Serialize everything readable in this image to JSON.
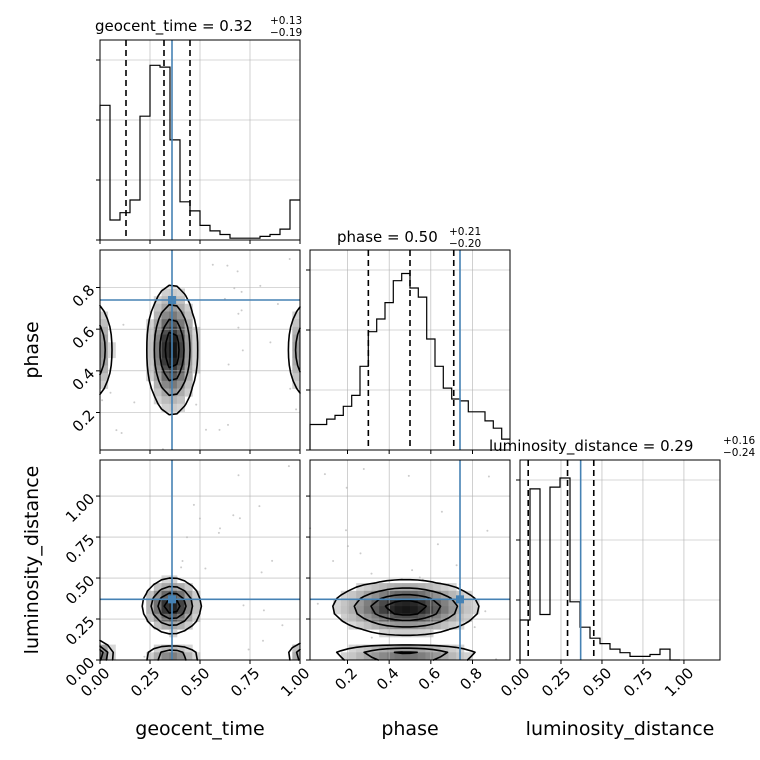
{
  "chart_data": {
    "type": "corner",
    "parameters": [
      "geocent_time",
      "phase",
      "luminosity_distance"
    ],
    "titles": [
      {
        "param": "geocent_time",
        "median": "0.32",
        "plus": "+0.13",
        "minus": "−0.19"
      },
      {
        "param": "phase",
        "median": "0.50",
        "plus": "+0.21",
        "minus": "−0.20"
      },
      {
        "param": "luminosity_distance",
        "median": "0.29",
        "plus": "+0.16",
        "minus": "−0.24"
      }
    ],
    "ranges": [
      [
        0.0,
        1.0
      ],
      [
        0.02,
        0.98
      ],
      [
        0.0,
        1.22
      ]
    ],
    "ticks": [
      {
        "values": [
          0.0,
          0.25,
          0.5,
          0.75,
          1.0
        ],
        "labels": [
          "0.00",
          "0.25",
          "0.50",
          "0.75",
          "1.00"
        ]
      },
      {
        "values": [
          0.2,
          0.4,
          0.6,
          0.8
        ],
        "labels": [
          "0.2",
          "0.4",
          "0.6",
          "0.8"
        ]
      },
      {
        "values": [
          0.0,
          0.25,
          0.5,
          0.75,
          1.0
        ],
        "labels": [
          "0.00",
          "0.25",
          "0.50",
          "0.75",
          "1.00"
        ]
      }
    ],
    "truths": [
      0.36,
      0.74,
      0.37
    ],
    "quantiles": [
      [
        0.13,
        0.32,
        0.45
      ],
      [
        0.3,
        0.5,
        0.71
      ],
      [
        0.05,
        0.29,
        0.45
      ]
    ],
    "histograms": [
      {
        "bin_start": 0.0,
        "bin_width": 0.05,
        "counts": [
          0.74,
          0.11,
          0.15,
          0.22,
          0.68,
          0.96,
          0.95,
          0.55,
          0.21,
          0.16,
          0.08,
          0.05,
          0.03,
          0.01,
          0.01,
          0.01,
          0.02,
          0.03,
          0.06,
          0.22
        ]
      },
      {
        "bin_start": 0.02,
        "bin_width": 0.04,
        "counts": [
          0.14,
          0.14,
          0.17,
          0.19,
          0.24,
          0.3,
          0.46,
          0.65,
          0.72,
          0.81,
          0.93,
          0.97,
          0.89,
          0.84,
          0.61,
          0.46,
          0.34,
          0.28,
          0.27,
          0.21,
          0.21,
          0.16,
          0.12,
          0.06
        ]
      },
      {
        "bin_start": 0.0,
        "bin_width": 0.061,
        "counts": [
          0.22,
          0.94,
          0.25,
          0.95,
          1.0,
          0.32,
          0.18,
          0.12,
          0.09,
          0.06,
          0.04,
          0.02,
          0.02,
          0.03,
          0.06,
          0.0
        ]
      }
    ],
    "grid": true,
    "colors": {
      "truth": "#4682b4",
      "hist": "#000000",
      "quantile": "#000000",
      "grid": "#b0b0b0",
      "points": "#a0a0a0"
    }
  }
}
